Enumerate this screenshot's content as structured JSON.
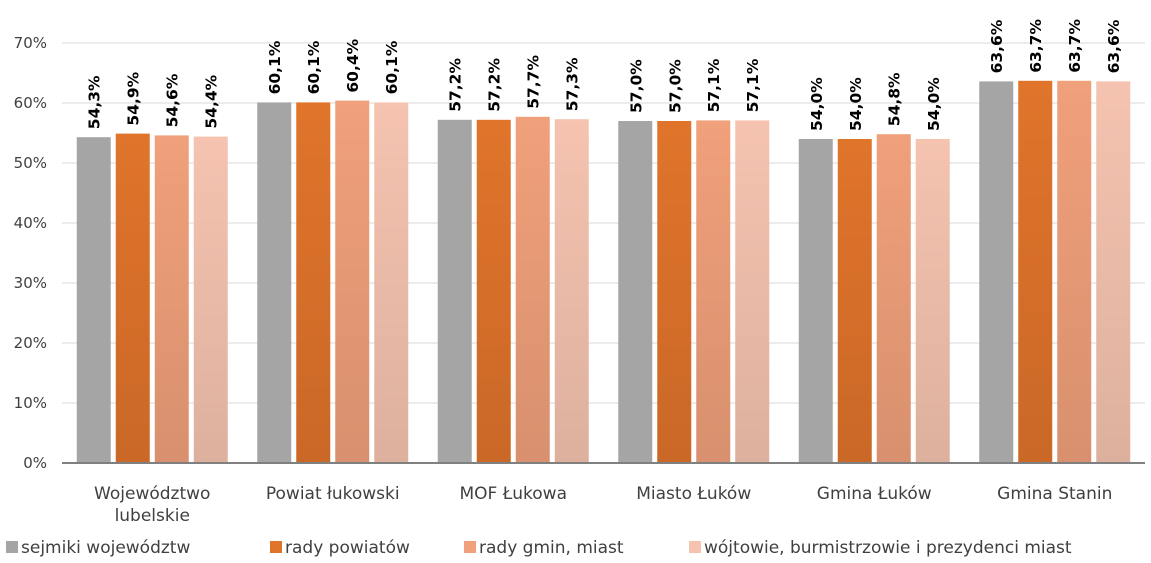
{
  "chart_data": {
    "type": "bar",
    "title": "",
    "xlabel": "",
    "ylabel": "",
    "ylim": [
      0,
      70
    ],
    "y_ticks": [
      "0%",
      "10%",
      "20%",
      "30%",
      "40%",
      "50%",
      "60%",
      "70%"
    ],
    "grid": true,
    "legend_position": "bottom",
    "categories": [
      [
        "Województwo",
        "lubelskie"
      ],
      [
        "Powiat łukowski"
      ],
      [
        "MOF Łukowa"
      ],
      [
        "Miasto Łuków"
      ],
      [
        "Gmina Łuków"
      ],
      [
        "Gmina Stanin"
      ]
    ],
    "series": [
      {
        "name": "sejmiki województw",
        "values": [
          54.3,
          60.1,
          57.2,
          57.0,
          54.0,
          63.6
        ],
        "labels": [
          "54,3%",
          "60,1%",
          "57,2%",
          "57,0%",
          "54,0%",
          "63,6%"
        ],
        "color": "#a5a5a5"
      },
      {
        "name": "rady powiatów",
        "values": [
          54.9,
          60.1,
          57.2,
          57.0,
          54.0,
          63.7
        ],
        "labels": [
          "54,9%",
          "60,1%",
          "57,2%",
          "57,0%",
          "54,0%",
          "63,7%"
        ],
        "color": "#e0742b"
      },
      {
        "name": "rady gmin, miast",
        "values": [
          54.6,
          60.4,
          57.7,
          57.1,
          54.8,
          63.7
        ],
        "labels": [
          "54,6%",
          "60,4%",
          "57,7%",
          "57,1%",
          "54,8%",
          "63,7%"
        ],
        "color": "#f0a07a"
      },
      {
        "name": "wójtowie, burmistrzowie i prezydenci miast",
        "values": [
          54.4,
          60.1,
          57.3,
          57.1,
          54.0,
          63.6
        ],
        "labels": [
          "54,4%",
          "60,1%",
          "57,3%",
          "57,1%",
          "54,0%",
          "63,6%"
        ],
        "color": "#f5c3b0"
      }
    ]
  }
}
